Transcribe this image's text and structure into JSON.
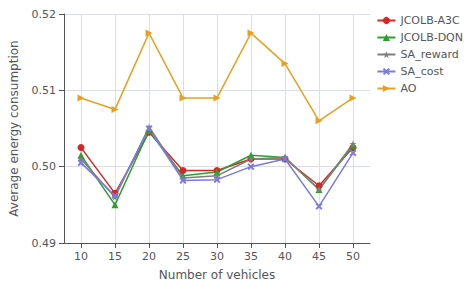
{
  "chart_data": {
    "type": "line",
    "x_label": "Number of vehicles",
    "y_label": "Average energy consumption",
    "x": [
      10,
      15,
      20,
      25,
      30,
      35,
      40,
      45,
      50
    ],
    "series": [
      {
        "name": "JCOLB-A3C",
        "color": "#d62728",
        "marker": "circle",
        "values": [
          0.5025,
          0.4965,
          0.5045,
          0.4995,
          0.4995,
          0.501,
          0.501,
          0.4975,
          0.5025
        ]
      },
      {
        "name": "JCOLB-DQN",
        "color": "#2ca02c",
        "marker": "triangle",
        "values": [
          0.5015,
          0.495,
          0.5047,
          0.4988,
          0.4993,
          0.5015,
          0.5012,
          0.497,
          0.5028
        ]
      },
      {
        "name": "SA_reward",
        "color": "#7f7f7f",
        "marker": "star",
        "values": [
          0.501,
          0.496,
          0.5052,
          0.4985,
          0.4988,
          0.501,
          0.5012,
          0.497,
          0.503
        ]
      },
      {
        "name": "SA_cost",
        "color": "#7b7bdf",
        "marker": "x",
        "values": [
          0.5005,
          0.4962,
          0.505,
          0.4982,
          0.4983,
          0.5,
          0.501,
          0.4948,
          0.5018
        ]
      },
      {
        "name": "AO",
        "color": "#e8a020",
        "marker": "triangle-right",
        "values": [
          0.509,
          0.5075,
          0.5175,
          0.509,
          0.509,
          0.5175,
          0.5135,
          0.506,
          0.509
        ]
      }
    ],
    "xlim": [
      7.5,
      52.5
    ],
    "xticks": [
      10,
      15,
      20,
      25,
      30,
      35,
      40,
      45,
      50
    ],
    "ylim": [
      0.49,
      0.52
    ],
    "yticks": [
      0.49,
      {
        "value": 0.5,
        "label": "0.50"
      },
      0.51,
      0.52
    ],
    "grid": true,
    "legend": "upper right"
  }
}
